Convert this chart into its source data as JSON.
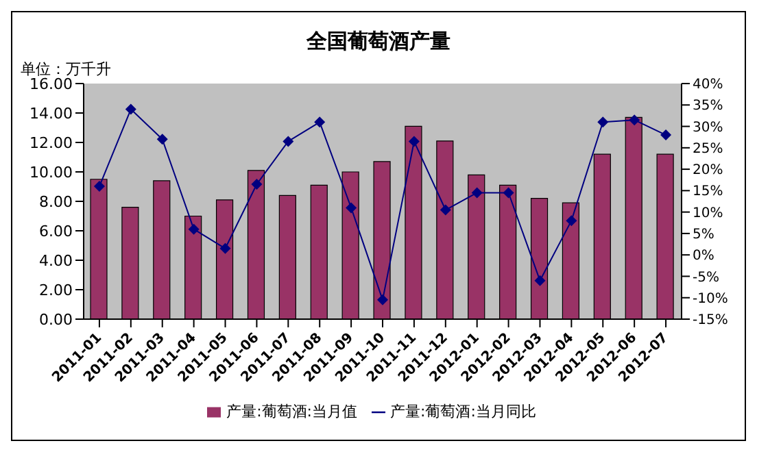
{
  "chart_data": {
    "type": "bar",
    "title": "全国葡萄酒产量",
    "ylabel": "单位：万千升",
    "categories": [
      "2011-01",
      "2011-02",
      "2011-03",
      "2011-04",
      "2011-05",
      "2011-06",
      "2011-07",
      "2011-08",
      "2011-09",
      "2011-10",
      "2011-11",
      "2011-12",
      "2012-01",
      "2012-02",
      "2012-03",
      "2012-04",
      "2012-05",
      "2012-06",
      "2012-07"
    ],
    "series": [
      {
        "name": "产量:葡萄酒:当月值",
        "color": "#993366",
        "values": [
          9.5,
          7.6,
          9.4,
          7.0,
          8.1,
          10.1,
          8.4,
          9.1,
          10.0,
          10.7,
          13.1,
          12.1,
          9.8,
          9.1,
          8.2,
          7.9,
          11.2,
          13.7,
          11.2
        ]
      },
      {
        "name": "产量:葡萄酒:当月同比",
        "type": "line",
        "axis": "y2",
        "color": "#000080",
        "values": [
          16,
          34,
          27,
          6,
          1.5,
          16.5,
          26.5,
          31,
          11,
          -10.5,
          26.5,
          10.5,
          14.5,
          14.5,
          -6,
          8,
          31,
          31.5,
          28
        ]
      }
    ],
    "ylim": [
      0,
      16
    ],
    "yticks": [
      {
        "value": 0,
        "label": "0.00"
      },
      {
        "value": 2,
        "label": "2.00"
      },
      {
        "value": 4,
        "label": "4.00"
      },
      {
        "value": 6,
        "label": "6.00"
      },
      {
        "value": 8,
        "label": "8.00"
      },
      {
        "value": 10,
        "label": "10.00"
      },
      {
        "value": 12,
        "label": "12.00"
      },
      {
        "value": 14,
        "label": "14.00"
      },
      {
        "value": 16,
        "label": "16.00"
      }
    ],
    "y2lim": [
      -15,
      40
    ],
    "y2ticks": [
      {
        "value": -15,
        "label": "-15%"
      },
      {
        "value": -10,
        "label": "-10%"
      },
      {
        "value": -5,
        "label": "-5%"
      },
      {
        "value": 0,
        "label": "0%"
      },
      {
        "value": 5,
        "label": "5%"
      },
      {
        "value": 10,
        "label": "10%"
      },
      {
        "value": 15,
        "label": "15%"
      },
      {
        "value": 20,
        "label": "20%"
      },
      {
        "value": 25,
        "label": "25%"
      },
      {
        "value": 30,
        "label": "30%"
      },
      {
        "value": 35,
        "label": "35%"
      },
      {
        "value": 40,
        "label": "40%"
      }
    ],
    "grid": false,
    "legend": "bottom",
    "marker": "diamond",
    "line_style": "solid"
  }
}
